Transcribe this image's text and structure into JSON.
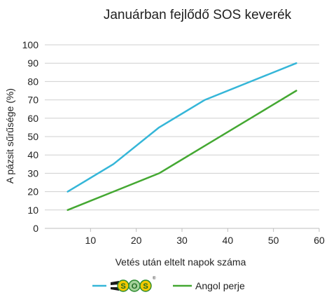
{
  "chart_data": {
    "type": "line",
    "title": "Januárban fejlődő SOS keverék",
    "xlabel": "Vetés után eltelt napok száma",
    "ylabel": "A pázsit sűrűsége (%)",
    "xlim": [
      0,
      60
    ],
    "ylim": [
      0,
      100
    ],
    "xticks": [
      10,
      20,
      30,
      40,
      50,
      60
    ],
    "yticks": [
      0,
      10,
      20,
      30,
      40,
      50,
      60,
      70,
      80,
      90,
      100
    ],
    "grid": "horizontal",
    "legend_position": "bottom",
    "x": [
      5,
      15,
      25,
      35,
      45,
      55
    ],
    "series": [
      {
        "name": "SOS",
        "legend_logo": true,
        "color": "#35b6d8",
        "values": [
          20,
          35,
          55,
          70,
          80,
          90
        ]
      },
      {
        "name": "Angol perje",
        "color": "#44a832",
        "values": [
          10,
          20,
          30,
          45,
          60,
          75
        ]
      }
    ]
  }
}
